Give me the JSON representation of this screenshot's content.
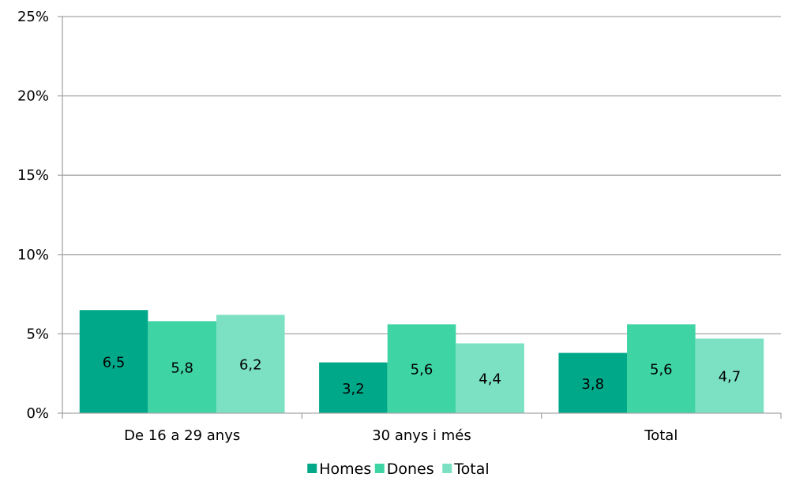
{
  "chart_data": {
    "type": "bar",
    "categories": [
      "De 16 a 29 anys",
      "30 anys i més",
      "Total"
    ],
    "series": [
      {
        "name": "Homes",
        "values": [
          6.5,
          3.2,
          3.8
        ],
        "labels": [
          "6,5",
          "3,2",
          "3,8"
        ],
        "color": "#00A88A"
      },
      {
        "name": "Dones",
        "values": [
          5.8,
          5.6,
          5.6
        ],
        "labels": [
          "5,8",
          "5,6",
          "5,6"
        ],
        "color": "#3FD4A4"
      },
      {
        "name": "Total",
        "values": [
          6.2,
          4.4,
          4.7
        ],
        "labels": [
          "6,2",
          "4,4",
          "4,7"
        ],
        "color": "#7BE1C2"
      }
    ],
    "y_ticks": [
      0,
      5,
      10,
      15,
      20,
      25
    ],
    "y_tick_labels": [
      "0%",
      "5%",
      "10%",
      "15%",
      "20%",
      "25%"
    ],
    "ylim": [
      0,
      25
    ],
    "grid": true,
    "legend_position": "bottom-center",
    "title": "",
    "xlabel": "",
    "ylabel": ""
  }
}
